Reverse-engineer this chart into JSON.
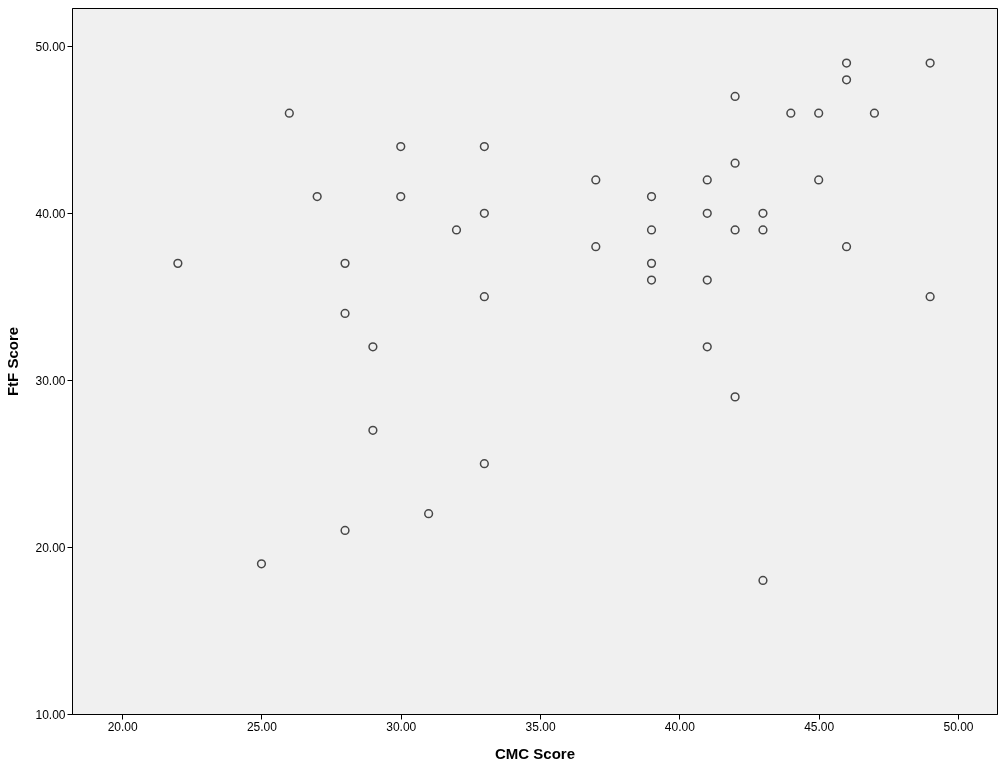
{
  "chart_data": {
    "type": "scatter",
    "xlabel": "CMC Score",
    "ylabel": "FtF Score",
    "x": [
      22,
      25,
      26,
      27,
      28,
      28,
      28,
      29,
      29,
      30,
      30,
      31,
      32,
      33,
      33,
      33,
      33,
      37,
      37,
      39,
      39,
      39,
      39,
      41,
      41,
      41,
      41,
      42,
      42,
      42,
      42,
      43,
      43,
      43,
      44,
      45,
      45,
      46,
      46,
      46,
      47,
      49,
      49
    ],
    "series": [
      {
        "color": "#000000",
        "values": [
          37,
          19,
          46,
          41,
          37,
          34,
          21,
          32,
          27,
          44,
          41,
          22,
          39,
          44,
          40,
          35,
          25,
          42,
          38,
          41,
          39,
          37,
          36,
          42,
          40,
          36,
          32,
          47,
          43,
          39,
          29,
          40,
          39,
          18,
          46,
          46,
          42,
          49,
          48,
          38,
          46,
          49,
          35
        ]
      }
    ],
    "xlim": [
      18.2,
      51.4
    ],
    "ylim": [
      10,
      52.3
    ],
    "xticks": [
      {
        "value": 20,
        "label": "20.00"
      },
      {
        "value": 25,
        "label": "25.00"
      },
      {
        "value": 30,
        "label": "30.00"
      },
      {
        "value": 35,
        "label": "35.00"
      },
      {
        "value": 40,
        "label": "40.00"
      },
      {
        "value": 45,
        "label": "45.00"
      },
      {
        "value": 50,
        "label": "50.00"
      }
    ],
    "yticks": [
      {
        "value": 10,
        "label": "10.00"
      },
      {
        "value": 20,
        "label": "20.00"
      },
      {
        "value": 30,
        "label": "30.00"
      },
      {
        "value": 40,
        "label": "40.00"
      },
      {
        "value": 50,
        "label": "50.00"
      }
    ],
    "marker": "circle",
    "grid": false,
    "legend": false
  }
}
